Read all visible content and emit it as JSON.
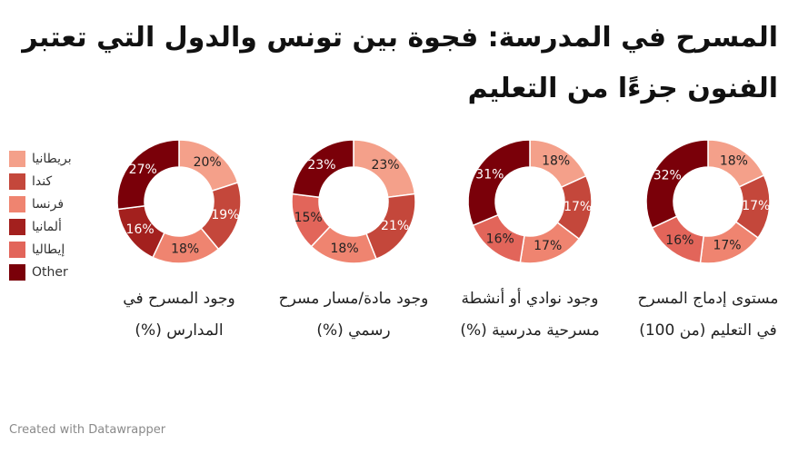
{
  "title": "المسرح في المدرسة: فجوة بين تونس والدول التي تعتبر الفنون جزءًا من التعليم",
  "footer": "Created with Datawrapper",
  "colors": {
    "بريطانيا": "#f4a08a",
    "كندا": "#c4473b",
    "فرنسا": "#ef8470",
    "ألمانيا": "#a3201e",
    "إيطاليا": "#e2655a",
    "Other": "#7a0009"
  },
  "chart_data": {
    "type": "donut",
    "legend_position": "left",
    "categories": [
      "بريطانيا",
      "كندا",
      "فرنسا",
      "ألمانيا",
      "إيطاليا",
      "Other"
    ],
    "charts": [
      {
        "label": "وجود المسرح في المدارس (%)",
        "slices": [
          {
            "category": "بريطانيا",
            "value": 20,
            "label": "20%"
          },
          {
            "category": "كندا",
            "value": 19,
            "label": "19%"
          },
          {
            "category": "فرنسا",
            "value": 18,
            "label": "18%"
          },
          {
            "category": "ألمانيا",
            "value": 16,
            "label": "16%"
          },
          {
            "category": "Other",
            "value": 27,
            "label": "27%"
          }
        ]
      },
      {
        "label": "وجود مادة/مسار مسرح رسمي (%)",
        "slices": [
          {
            "category": "بريطانيا",
            "value": 23,
            "label": "23%"
          },
          {
            "category": "كندا",
            "value": 21,
            "label": "21%"
          },
          {
            "category": "فرنسا",
            "value": 18,
            "label": "18%"
          },
          {
            "category": "إيطاليا",
            "value": 15,
            "label": "15%"
          },
          {
            "category": "Other",
            "value": 23,
            "label": "23%"
          }
        ]
      },
      {
        "label": "وجود نوادي أو أنشطة مسرحية مدرسية (%)",
        "slices": [
          {
            "category": "بريطانيا",
            "value": 18,
            "label": "18%"
          },
          {
            "category": "كندا",
            "value": 17,
            "label": "17%"
          },
          {
            "category": "فرنسا",
            "value": 17,
            "label": "17%"
          },
          {
            "category": "إيطاليا",
            "value": 16,
            "label": "16%"
          },
          {
            "category": "Other",
            "value": 31,
            "label": "31%"
          }
        ]
      },
      {
        "label": "مستوى إدماج المسرح في التعليم (من 100)",
        "slices": [
          {
            "category": "بريطانيا",
            "value": 18,
            "label": "18%"
          },
          {
            "category": "كندا",
            "value": 17,
            "label": "17%"
          },
          {
            "category": "فرنسا",
            "value": 17,
            "label": "17%"
          },
          {
            "category": "إيطاليا",
            "value": 16,
            "label": "16%"
          },
          {
            "category": "Other",
            "value": 32,
            "label": "32%"
          }
        ]
      }
    ]
  }
}
